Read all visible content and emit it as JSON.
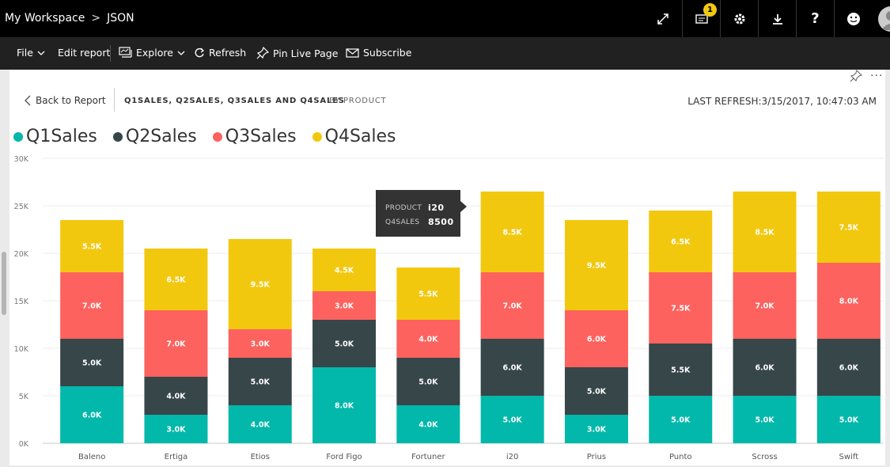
{
  "breadcrumb": {
    "workspace": "My Workspace",
    "item": "JSON"
  },
  "topbar": {
    "notification_count": "1"
  },
  "toolbar": {
    "file": "File",
    "edit_report": "Edit report",
    "explore": "Explore",
    "refresh": "Refresh",
    "pin_live_page": "Pin Live Page",
    "subscribe": "Subscribe"
  },
  "visual": {
    "back": "Back to Report",
    "title": "Q1SALES, Q2SALES, Q3SALES AND Q4SALES",
    "subtitle": "BY PRODUCT",
    "last_refresh": "LAST REFRESH:3/15/2017, 10:47:03 AM"
  },
  "tooltip": {
    "label1": "PRODUCT",
    "value1": "i20",
    "label2": "Q4SALES",
    "value2": "8500"
  },
  "colors": {
    "Q1Sales": "#01b8aa",
    "Q2Sales": "#374649",
    "Q3Sales": "#fd625e",
    "Q4Sales": "#f2c80f"
  },
  "chart_data": {
    "type": "bar",
    "stacked": true,
    "categories": [
      "Baleno",
      "Ertiga",
      "Etios",
      "Ford Figo",
      "Fortuner",
      "i20",
      "Prius",
      "Punto",
      "Scross",
      "Swift"
    ],
    "series": [
      {
        "name": "Q1Sales",
        "values": [
          6000,
          3000,
          4000,
          8000,
          4000,
          5000,
          3000,
          5000,
          5000,
          5000
        ],
        "labels": [
          "6.0K",
          "3.0K",
          "4.0K",
          "8.0K",
          "4.0K",
          "5.0K",
          "3.0K",
          "5.0K",
          "5.0K",
          "5.0K"
        ]
      },
      {
        "name": "Q2Sales",
        "values": [
          5000,
          4000,
          5000,
          5000,
          5000,
          6000,
          5000,
          5500,
          6000,
          6000
        ],
        "labels": [
          "5.0K",
          "4.0K",
          "5.0K",
          "5.0K",
          "5.0K",
          "6.0K",
          "5.0K",
          "5.5K",
          "6.0K",
          "6.0K"
        ]
      },
      {
        "name": "Q3Sales",
        "values": [
          7000,
          7000,
          3000,
          3000,
          4000,
          7000,
          6000,
          7500,
          7000,
          8000
        ],
        "labels": [
          "7.0K",
          "7.0K",
          "3.0K",
          "3.0K",
          "4.0K",
          "7.0K",
          "6.0K",
          "7.5K",
          "7.0K",
          "8.0K"
        ]
      },
      {
        "name": "Q4Sales",
        "values": [
          5500,
          6500,
          9500,
          4500,
          5500,
          8500,
          9500,
          6500,
          8500,
          7500
        ],
        "labels": [
          "5.5K",
          "6.5K",
          "9.5K",
          "4.5K",
          "5.5K",
          "8.5K",
          "9.5K",
          "6.5K",
          "8.5K",
          "7.5K"
        ]
      }
    ],
    "yticks": [
      0,
      5000,
      10000,
      15000,
      20000,
      25000,
      30000
    ],
    "ytick_labels": [
      "0K",
      "5K",
      "10K",
      "15K",
      "20K",
      "25K",
      "30K"
    ],
    "ylim": [
      0,
      30000
    ],
    "grid": true,
    "legend_position": "top-left"
  }
}
